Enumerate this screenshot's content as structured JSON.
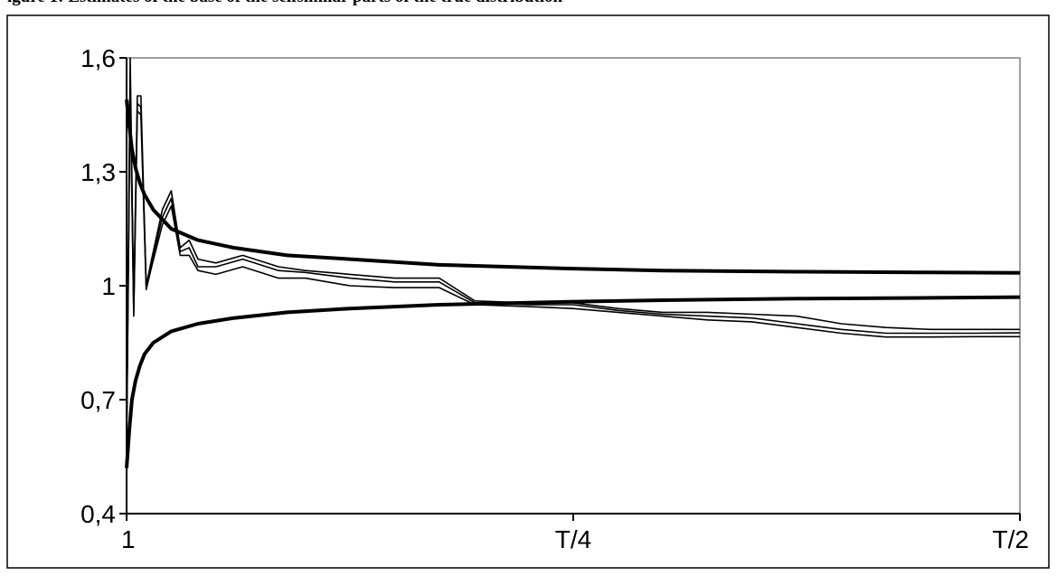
{
  "header_fragment": "igure 1: Estimates of the base of the selfsimilar parts of the true distribution",
  "chart_data": {
    "type": "line",
    "title": "",
    "xlabel": "",
    "ylabel": "",
    "x_ticks": [
      "1",
      "T/4",
      "T/2"
    ],
    "y_ticks": [
      "0,4",
      "0,7",
      "1",
      "1,3",
      "1,6"
    ],
    "y_tick_values": [
      0.4,
      0.7,
      1.0,
      1.3,
      1.6
    ],
    "xlim": [
      0,
      1
    ],
    "ylim": [
      0.4,
      1.6
    ],
    "grid": false,
    "legend": "none",
    "x_axis_note": "x values are fractions of the displayed span, 0 = tick '1', 0.5 = tick 'T/4', 1 = tick 'T/2'",
    "series": [
      {
        "x": [
          0.0,
          0.003,
          0.006,
          0.01,
          0.015,
          0.02,
          0.03,
          0.05,
          0.08,
          0.12,
          0.18,
          0.25,
          0.35,
          0.5,
          0.6,
          0.75,
          0.9,
          1.0
        ],
        "values": [
          1.49,
          1.42,
          1.36,
          1.31,
          1.27,
          1.24,
          1.2,
          1.15,
          1.12,
          1.1,
          1.08,
          1.07,
          1.055,
          1.045,
          1.04,
          1.037,
          1.035,
          1.034
        ]
      },
      {
        "x": [
          0.0,
          0.003,
          0.006,
          0.01,
          0.015,
          0.02,
          0.03,
          0.05,
          0.08,
          0.12,
          0.18,
          0.25,
          0.35,
          0.5,
          0.6,
          0.75,
          0.9,
          1.0
        ],
        "values": [
          0.52,
          0.62,
          0.7,
          0.75,
          0.79,
          0.82,
          0.85,
          0.88,
          0.9,
          0.915,
          0.93,
          0.94,
          0.95,
          0.958,
          0.962,
          0.966,
          0.968,
          0.97
        ]
      },
      {
        "x": [
          0.0,
          0.004,
          0.008,
          0.012,
          0.016,
          0.022,
          0.028,
          0.04,
          0.05,
          0.06,
          0.07,
          0.08,
          0.1,
          0.13,
          0.17,
          0.2,
          0.25,
          0.3,
          0.35,
          0.39,
          0.45,
          0.5,
          0.55,
          0.6,
          0.65,
          0.7,
          0.75,
          0.8,
          0.85,
          0.9,
          0.95,
          1.0
        ],
        "values": [
          0.6,
          1.6,
          0.95,
          1.5,
          1.5,
          1.0,
          1.07,
          1.2,
          1.25,
          1.1,
          1.12,
          1.07,
          1.06,
          1.08,
          1.05,
          1.04,
          1.03,
          1.02,
          1.02,
          0.96,
          0.955,
          0.955,
          0.94,
          0.93,
          0.93,
          0.925,
          0.92,
          0.9,
          0.89,
          0.885,
          0.885,
          0.885
        ]
      },
      {
        "x": [
          0.0,
          0.004,
          0.008,
          0.012,
          0.016,
          0.022,
          0.028,
          0.04,
          0.05,
          0.06,
          0.07,
          0.08,
          0.1,
          0.13,
          0.17,
          0.2,
          0.25,
          0.3,
          0.35,
          0.39,
          0.45,
          0.5,
          0.55,
          0.6,
          0.65,
          0.7,
          0.75,
          0.8,
          0.85,
          0.9,
          0.95,
          1.0
        ],
        "values": [
          0.58,
          1.55,
          0.93,
          1.48,
          1.47,
          1.0,
          1.06,
          1.18,
          1.23,
          1.09,
          1.1,
          1.05,
          1.05,
          1.07,
          1.04,
          1.035,
          1.02,
          1.01,
          1.01,
          0.955,
          0.95,
          0.95,
          0.935,
          0.925,
          0.92,
          0.915,
          0.9,
          0.885,
          0.875,
          0.875,
          0.875,
          0.876
        ]
      },
      {
        "x": [
          0.0,
          0.004,
          0.008,
          0.012,
          0.016,
          0.022,
          0.028,
          0.04,
          0.05,
          0.06,
          0.07,
          0.08,
          0.1,
          0.13,
          0.17,
          0.2,
          0.25,
          0.3,
          0.35,
          0.39,
          0.45,
          0.5,
          0.55,
          0.6,
          0.65,
          0.7,
          0.75,
          0.8,
          0.85,
          0.9,
          0.95,
          1.0
        ],
        "values": [
          0.56,
          1.52,
          0.92,
          1.46,
          1.45,
          0.99,
          1.05,
          1.16,
          1.21,
          1.08,
          1.08,
          1.04,
          1.03,
          1.05,
          1.02,
          1.02,
          1.0,
          0.995,
          0.995,
          0.95,
          0.945,
          0.94,
          0.93,
          0.92,
          0.91,
          0.905,
          0.89,
          0.875,
          0.865,
          0.865,
          0.866,
          0.866
        ]
      }
    ]
  }
}
